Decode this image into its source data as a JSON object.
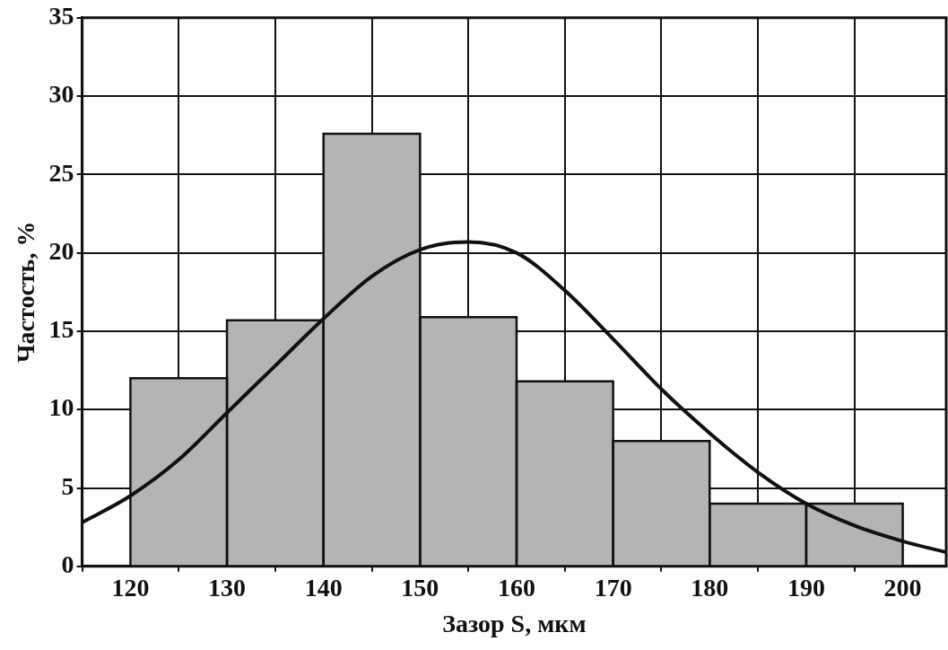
{
  "chart_data": {
    "type": "histogram",
    "xlabel": "Зазор S, мкм",
    "ylabel": "Частость, %",
    "xlim": [
      115,
      204.5
    ],
    "xticks": [
      120,
      130,
      140,
      150,
      160,
      170,
      180,
      190,
      200
    ],
    "ylim": [
      0,
      35
    ],
    "yticks": [
      0,
      5,
      10,
      15,
      20,
      25,
      30,
      35
    ],
    "grid": true,
    "series": [
      {
        "type": "histogram",
        "color": "#b4b4b4",
        "bins": [
          120,
          130,
          140,
          150,
          160,
          170,
          180,
          190,
          200
        ],
        "values": [
          12,
          15.7,
          27.6,
          15.9,
          11.8,
          8,
          4,
          4
        ]
      },
      {
        "type": "line",
        "color": "#111111",
        "x": [
          115,
          120,
          125,
          130,
          135,
          140,
          145,
          150,
          155,
          160,
          165,
          170,
          175,
          180,
          185,
          190,
          195,
          200,
          204.5
        ],
        "values": [
          2.8,
          4.5,
          6.8,
          9.8,
          12.8,
          15.8,
          18.5,
          20.2,
          20.7,
          20,
          17.6,
          14.5,
          11.3,
          8.5,
          6,
          4,
          2.6,
          1.6,
          0.9
        ]
      }
    ]
  }
}
